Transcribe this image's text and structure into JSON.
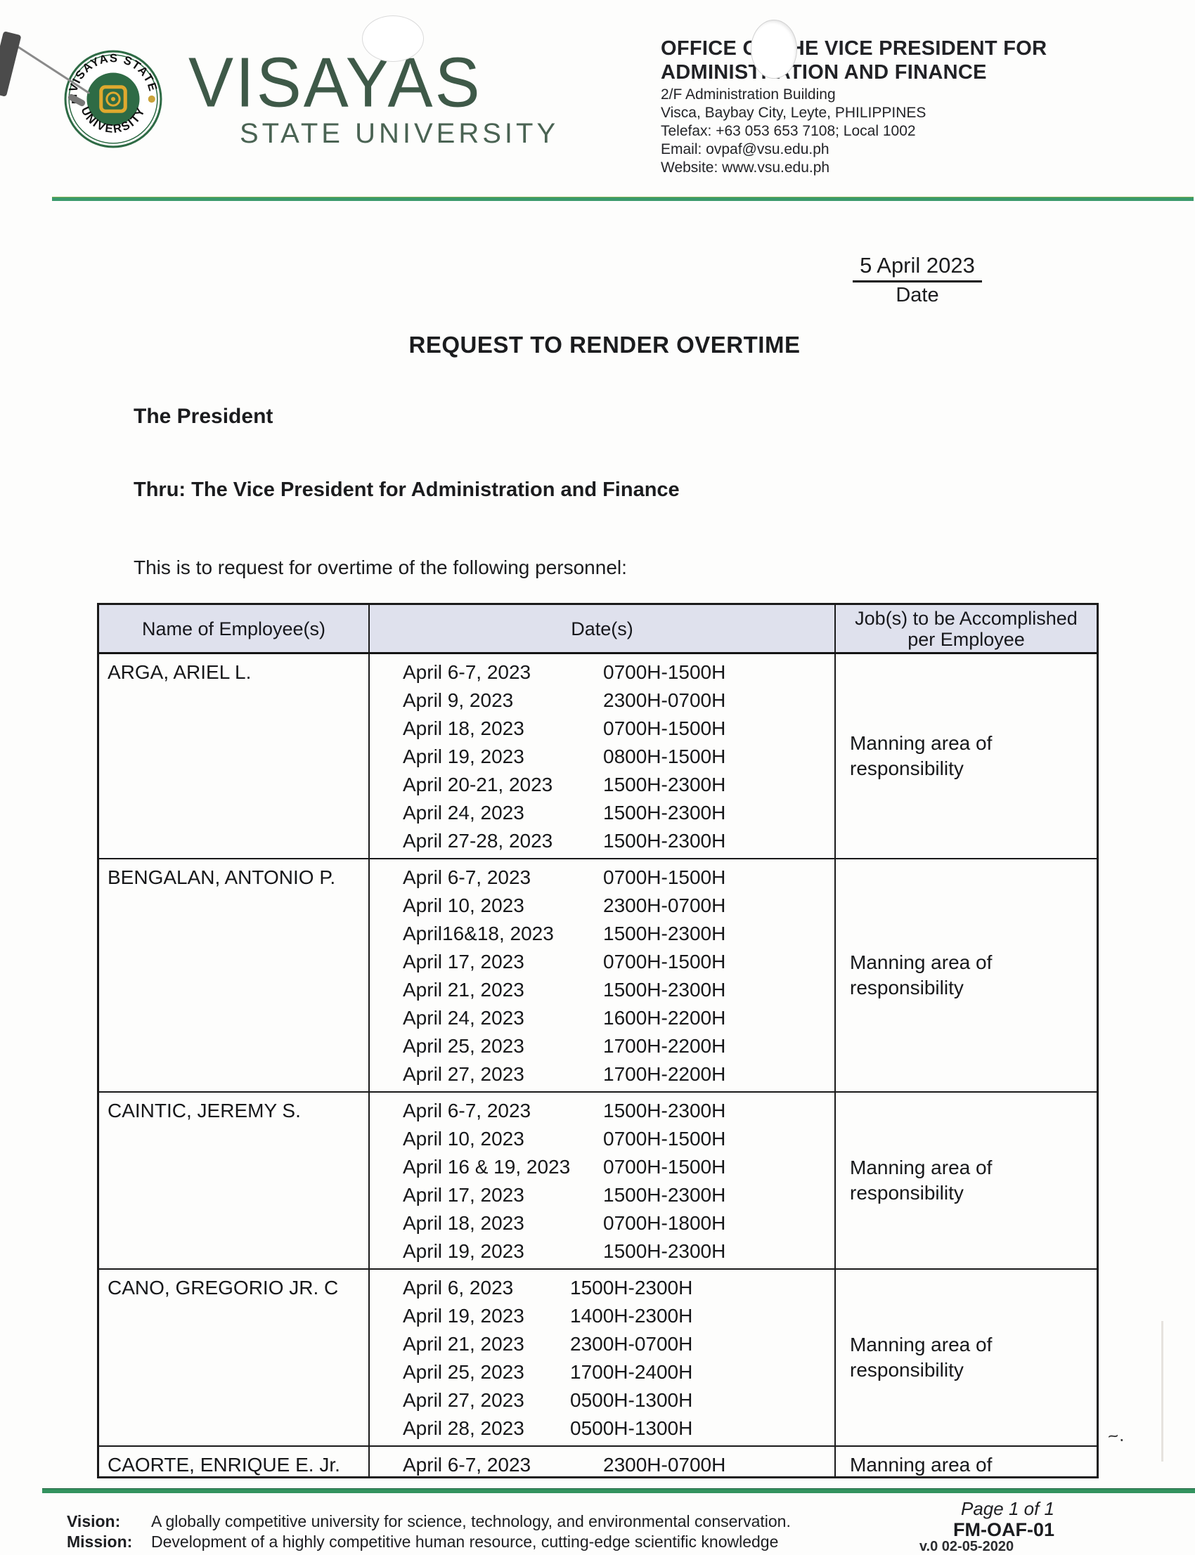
{
  "letterhead": {
    "wordmark_line1": "VISAYAS",
    "wordmark_line2": "STATE UNIVERSITY",
    "seal_top_text": "VISAYAS STATE",
    "seal_bottom_text": "UNIVERSITY",
    "office_line1": "OFFICE OF THE VICE PRESIDENT FOR",
    "office_line2": "ADMINISTRATION AND FINANCE",
    "address_lines": [
      "2/F Administration Building",
      "Visca, Baybay City, Leyte, PHILIPPINES",
      "Telefax: +63 053 653 7108; Local 1002",
      "Email: ovpaf@vsu.edu.ph",
      "Website: www.vsu.edu.ph"
    ],
    "colors": {
      "brand_green": "#3e5948",
      "rule_green": "#3a9a6c",
      "seal_green": "#2e6b45",
      "seal_gold": "#dfa92e",
      "table_header_bg": "#dfe1ed"
    }
  },
  "document": {
    "date_value": "5 April 2023",
    "date_label": "Date",
    "title": "REQUEST TO RENDER OVERTIME",
    "addressee": "The President",
    "thru": "Thru: The Vice President for Administration and Finance",
    "intro": "This is to request for overtime of the following personnel:"
  },
  "table": {
    "headers": [
      "Name of Employee(s)",
      "Date(s)",
      "Job(s) to be Accomplished per Employee"
    ],
    "rows": [
      {
        "name": "ARGA, ARIEL L.",
        "schedule": [
          {
            "date": "April 6-7, 2023",
            "time": "0700H-1500H"
          },
          {
            "date": "April 9, 2023",
            "time": "2300H-0700H"
          },
          {
            "date": "April 18, 2023",
            "time": "0700H-1500H"
          },
          {
            "date": "April 19, 2023",
            "time": "0800H-1500H"
          },
          {
            "date": "April 20-21, 2023",
            "time": "1500H-2300H"
          },
          {
            "date": "April 24, 2023",
            "time": "1500H-2300H"
          },
          {
            "date": "April 27-28, 2023",
            "time": "1500H-2300H"
          }
        ],
        "job": "Manning area of responsibility"
      },
      {
        "name": "BENGALAN, ANTONIO P.",
        "schedule": [
          {
            "date": "April 6-7, 2023",
            "time": "0700H-1500H"
          },
          {
            "date": "April 10, 2023",
            "time": "2300H-0700H"
          },
          {
            "date": "April16&18, 2023",
            "time": "1500H-2300H"
          },
          {
            "date": "April 17, 2023",
            "time": "0700H-1500H"
          },
          {
            "date": "April 21, 2023",
            "time": "1500H-2300H"
          },
          {
            "date": "April 24, 2023",
            "time": "1600H-2200H"
          },
          {
            "date": "April 25, 2023",
            "time": "1700H-2200H"
          },
          {
            "date": "April 27, 2023",
            "time": "1700H-2200H"
          }
        ],
        "job": "Manning area of responsibility"
      },
      {
        "name": "CAINTIC, JEREMY S.",
        "schedule": [
          {
            "date": "April 6-7, 2023",
            "time": "1500H-2300H"
          },
          {
            "date": "April 10, 2023",
            "time": "0700H-1500H"
          },
          {
            "date": "April 16 & 19, 2023",
            "time": "0700H-1500H"
          },
          {
            "date": "April 17, 2023",
            "time": "1500H-2300H"
          },
          {
            "date": "April 18, 2023",
            "time": "0700H-1800H"
          },
          {
            "date": "April 19, 2023",
            "time": "1500H-2300H"
          }
        ],
        "job": "Manning area of responsibility"
      },
      {
        "name": "CANO, GREGORIO JR. C",
        "schedule": [
          {
            "date": "April 6, 2023",
            "time": "1500H-2300H"
          },
          {
            "date": "April 19, 2023",
            "time": "1400H-2300H"
          },
          {
            "date": "April 21, 2023",
            "time": "2300H-0700H"
          },
          {
            "date": "April 25, 2023",
            "time": "1700H-2400H"
          },
          {
            "date": "April 27, 2023",
            "time": "0500H-1300H"
          },
          {
            "date": "April 28, 2023",
            "time": "0500H-1300H"
          }
        ],
        "job": "Manning area of responsibility"
      },
      {
        "name": "CAORTE, ENRIQUE E. Jr.",
        "schedule": [
          {
            "date": "April 6-7, 2023",
            "time": "2300H-0700H"
          }
        ],
        "job": "Manning area of"
      }
    ]
  },
  "footer": {
    "page_label": "Page 1 of 1",
    "form_code": "FM-OAF-01",
    "form_version": "v.0 02-05-2020",
    "vision_label": "Vision:",
    "vision_text": "A globally competitive university for science, technology, and environmental conservation.",
    "mission_label": "Mission:",
    "mission_text": "Development of a highly competitive human resource, cutting-edge scientific knowledge"
  }
}
